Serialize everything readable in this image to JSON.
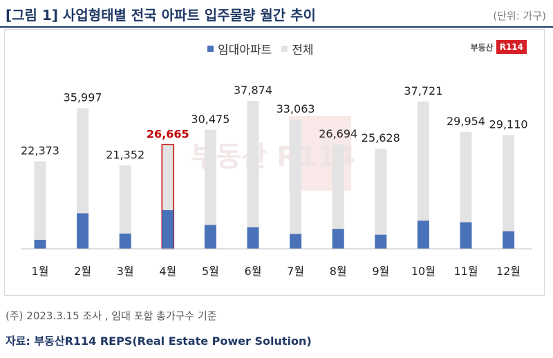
{
  "header": {
    "title": "[그림 1] 사업형태별 전국 아파트 입주물량 월간 추이",
    "unit": "(단위: 가구)"
  },
  "logo": {
    "text": "부동산",
    "badge": "R114"
  },
  "watermark": {
    "text": "부동산 R114"
  },
  "chart_data": {
    "type": "bar",
    "categories": [
      "1월",
      "2월",
      "3월",
      "4월",
      "5월",
      "6월",
      "7월",
      "8월",
      "9월",
      "10월",
      "11월",
      "12월"
    ],
    "series": [
      {
        "name": "임대아파트",
        "color": "#4a72b8",
        "values": [
          2300,
          9100,
          3900,
          9900,
          6100,
          5500,
          3800,
          5100,
          3600,
          7200,
          6800,
          4500
        ]
      },
      {
        "name": "전체",
        "color": "#e3e3e3",
        "values": [
          22373,
          35997,
          21352,
          26665,
          30475,
          37874,
          33063,
          26694,
          25628,
          37721,
          29954,
          29110
        ]
      }
    ],
    "data_labels": [
      "22,373",
      "35,997",
      "21,352",
      "26,665",
      "30,475",
      "37,874",
      "33,063",
      "26,694",
      "25,628",
      "37,721",
      "29,954",
      "29,110"
    ],
    "highlight_index": 3,
    "highlight_color": "#c00000",
    "ylim": [
      0,
      40000
    ],
    "grid": false,
    "legend_position": "top",
    "title": "",
    "xlabel": "",
    "ylabel": ""
  },
  "footer": {
    "note": "(주) 2023.3.15 조사 , 임대 포함 총가구수 기준",
    "source": "자료: 부동산R114 REPS(Real Estate Power Solution)"
  }
}
